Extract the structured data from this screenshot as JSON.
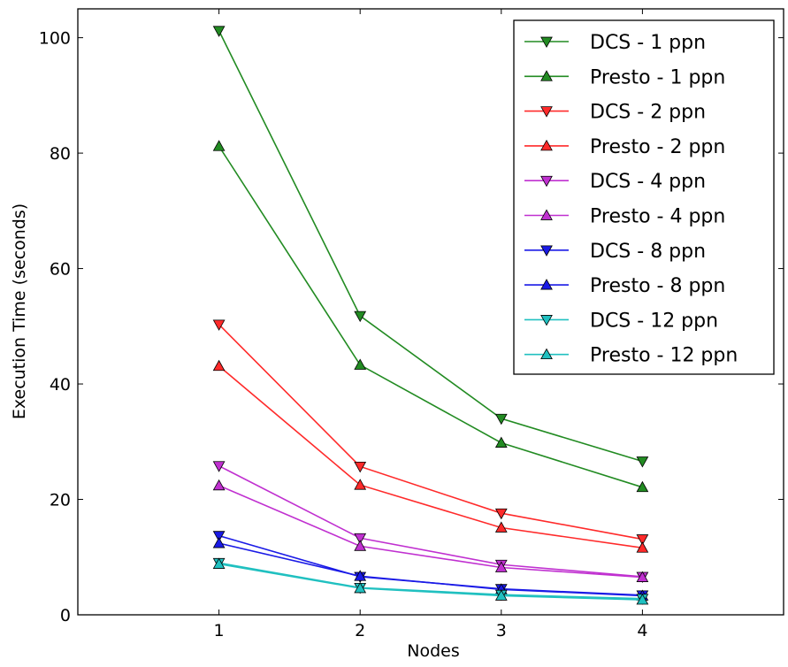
{
  "chart_data": {
    "type": "line",
    "title": "",
    "xlabel": "Nodes",
    "ylabel": "Execution Time (seconds)",
    "x": [
      1,
      2,
      3,
      4
    ],
    "xlim": [
      0,
      5
    ],
    "ylim": [
      0,
      105
    ],
    "xticks": [
      1,
      2,
      3,
      4
    ],
    "yticks": [
      0,
      20,
      40,
      60,
      80,
      100
    ],
    "grid": false,
    "legend_position": "top-right",
    "series": [
      {
        "name": "DCS - 1 ppn",
        "color": "#228b22",
        "marker": "triangle-down",
        "values": [
          101.2,
          51.8,
          34.0,
          26.6
        ]
      },
      {
        "name": "Presto - 1 ppn",
        "color": "#228b22",
        "marker": "triangle-up",
        "values": [
          81.2,
          43.3,
          29.8,
          22.1
        ]
      },
      {
        "name": "DCS - 2 ppn",
        "color": "#ff2a2a",
        "marker": "triangle-down",
        "values": [
          50.3,
          25.7,
          17.6,
          13.1
        ]
      },
      {
        "name": "Presto - 2 ppn",
        "color": "#ff2a2a",
        "marker": "triangle-up",
        "values": [
          43.1,
          22.5,
          15.1,
          11.6
        ]
      },
      {
        "name": "DCS - 4 ppn",
        "color": "#c030d0",
        "marker": "triangle-down",
        "values": [
          25.8,
          13.3,
          8.7,
          6.6
        ]
      },
      {
        "name": "Presto - 4 ppn",
        "color": "#c030d0",
        "marker": "triangle-up",
        "values": [
          22.4,
          11.9,
          8.2,
          6.5
        ]
      },
      {
        "name": "DCS - 8 ppn",
        "color": "#1a1ae6",
        "marker": "triangle-down",
        "values": [
          13.7,
          6.6,
          4.5,
          3.4
        ]
      },
      {
        "name": "Presto - 8 ppn",
        "color": "#1a1ae6",
        "marker": "triangle-up",
        "values": [
          12.4,
          6.7,
          4.4,
          3.3
        ]
      },
      {
        "name": "DCS - 12 ppn",
        "color": "#20c0c0",
        "marker": "triangle-down",
        "values": [
          9.0,
          4.7,
          3.5,
          2.8
        ]
      },
      {
        "name": "Presto - 12 ppn",
        "color": "#20c0c0",
        "marker": "triangle-up",
        "values": [
          8.8,
          4.6,
          3.3,
          2.6
        ]
      }
    ]
  }
}
